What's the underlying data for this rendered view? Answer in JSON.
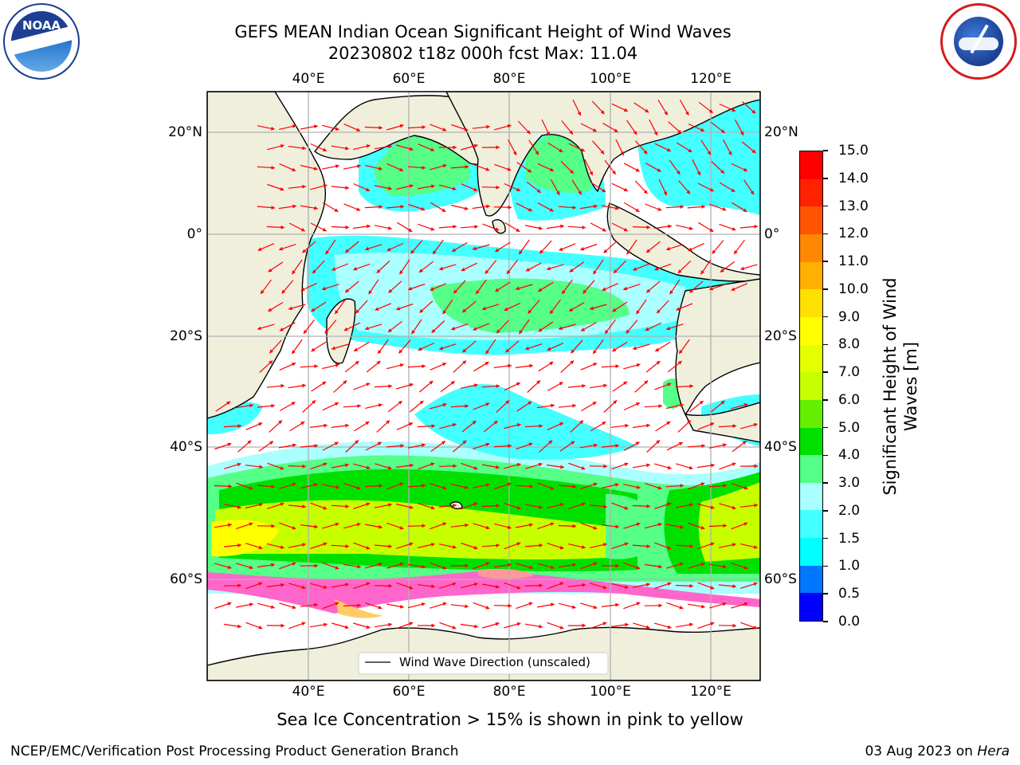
{
  "title": {
    "line1": "GEFS MEAN Indian Ocean Significant Height of Wind Waves",
    "line2": "20230802 t18z 000h fcst   Max: 11.04"
  },
  "axes": {
    "lon_labels": [
      "40°E",
      "60°E",
      "80°E",
      "100°E",
      "120°E"
    ],
    "lat_labels": [
      "20°N",
      "0°",
      "20°S",
      "40°S",
      "60°S"
    ]
  },
  "legend": {
    "label": "Wind Wave Direction (unscaled)"
  },
  "colorbar": {
    "label_line1": "Significant Height of Wind",
    "label_line2": "Waves [m]",
    "ticks": [
      "0.0",
      "0.5",
      "1.0",
      "1.5",
      "2.0",
      "3.0",
      "4.0",
      "5.0",
      "6.0",
      "7.0",
      "8.0",
      "9.0",
      "10.0",
      "11.0",
      "12.0",
      "13.0",
      "14.0",
      "15.0"
    ],
    "colors": [
      "#0000ff",
      "#0077ff",
      "#00ffff",
      "#44ffff",
      "#aaffff",
      "#55ff88",
      "#00e000",
      "#66ee00",
      "#c8ff00",
      "#e6ff00",
      "#ffff00",
      "#ffe000",
      "#ffb000",
      "#ff8800",
      "#ff5500",
      "#ff2200",
      "#ff0000"
    ]
  },
  "note": "Sea Ice Concentration > 15% is shown in pink to yellow",
  "footer": {
    "left": "NCEP/EMC/Verification Post Processing Product Generation Branch",
    "date": "03 Aug 2023 on ",
    "host": "Hera"
  },
  "logos": {
    "noaa_text": "NOAA"
  }
}
